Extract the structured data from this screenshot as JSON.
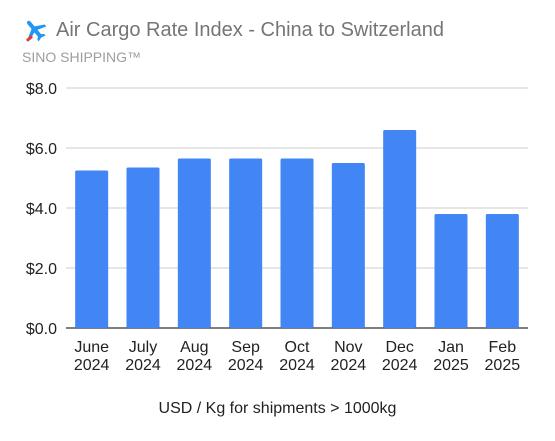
{
  "header": {
    "title": "Air Cargo Rate Index - China to Switzerland",
    "subtitle": "SINO SHIPPING™",
    "icon": "airplane-icon"
  },
  "colors": {
    "bar": "#4285f4",
    "grid": "#cccccc",
    "axis": "#333333",
    "icon_blue": "#2196f3",
    "icon_red": "#e53935"
  },
  "chart_data": {
    "type": "bar",
    "title": "Air Cargo Rate Index - China to Switzerland",
    "subtitle": "SINO SHIPPING™",
    "categories": [
      "June 2024",
      "July 2024",
      "Aug 2024",
      "Sep 2024",
      "Oct 2024",
      "Nov 2024",
      "Dec 2024",
      "Jan 2025",
      "Feb 2025"
    ],
    "category_lines": [
      [
        "June",
        "2024"
      ],
      [
        "July",
        "2024"
      ],
      [
        "Aug",
        "2024"
      ],
      [
        "Sep",
        "2024"
      ],
      [
        "Oct",
        "2024"
      ],
      [
        "Nov",
        "2024"
      ],
      [
        "Dec",
        "2024"
      ],
      [
        "Jan",
        "2025"
      ],
      [
        "Feb",
        "2025"
      ]
    ],
    "values": [
      5.25,
      5.35,
      5.65,
      5.65,
      5.65,
      5.5,
      6.6,
      3.8,
      3.8
    ],
    "xlabel": "USD / Kg for shipments > 1000kg",
    "ylabel": "",
    "ylim": [
      0,
      8
    ],
    "yticks": [
      0,
      2,
      4,
      6,
      8
    ],
    "ytick_labels": [
      "$0.0",
      "$2.0",
      "$4.0",
      "$6.0",
      "$8.0"
    ],
    "grid": true,
    "legend": "none"
  }
}
